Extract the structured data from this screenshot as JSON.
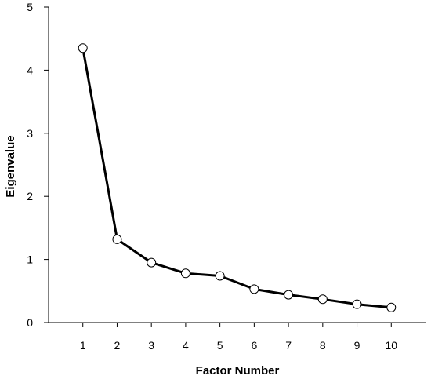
{
  "chart_data": {
    "type": "line",
    "title": "",
    "xlabel": "Factor Number",
    "ylabel": "Eigenvalue",
    "x": [
      1,
      2,
      3,
      4,
      5,
      6,
      7,
      8,
      9,
      10
    ],
    "x_tick_labels": [
      "1",
      "2",
      "3",
      "4",
      "5",
      "6",
      "7",
      "8",
      "9",
      "10"
    ],
    "y_tick_labels": [
      "0",
      "1",
      "2",
      "3",
      "4",
      "5"
    ],
    "y_ticks": [
      0,
      1,
      2,
      3,
      4,
      5
    ],
    "xlim": [
      0,
      11
    ],
    "ylim": [
      0,
      5
    ],
    "grid": false,
    "series": [
      {
        "values": [
          4.35,
          1.32,
          0.95,
          0.78,
          0.74,
          0.53,
          0.44,
          0.37,
          0.29,
          0.24
        ]
      }
    ]
  },
  "style": {
    "line_color": "#000000",
    "marker_fill": "#ffffff",
    "axis_color": "#000000",
    "background": "#ffffff"
  }
}
